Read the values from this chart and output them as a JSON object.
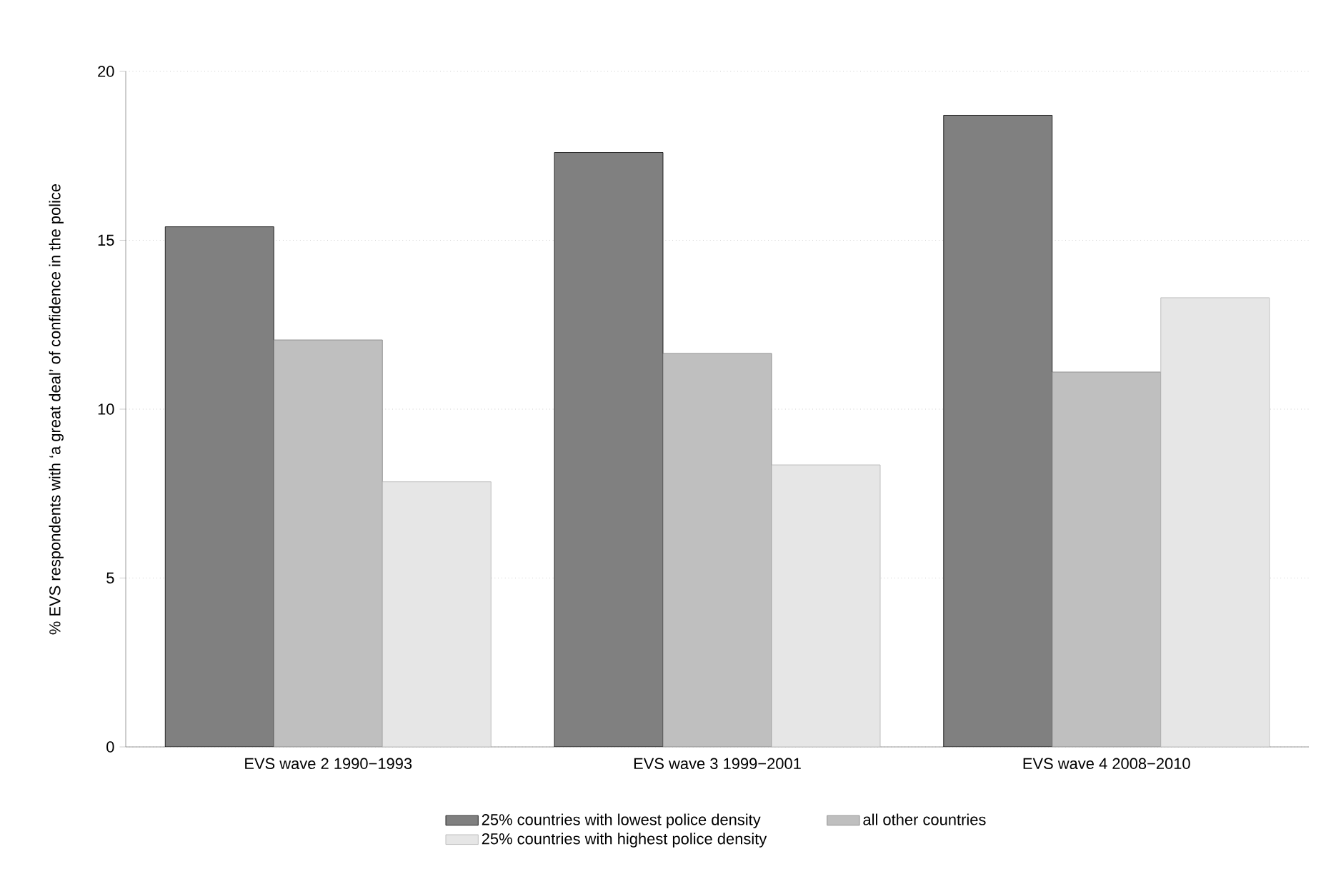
{
  "chart_data": {
    "type": "bar",
    "ylabel": "% EVS respondents with ‘a great deal’ of confidence in the police",
    "categories": [
      "EVS wave 2 1990−1993",
      "EVS wave 3 1999−2001",
      "EVS wave 4 2008−2010"
    ],
    "series": [
      {
        "name": "25% countries with lowest police density",
        "color": "#808080",
        "values": [
          15.4,
          17.6,
          18.7
        ]
      },
      {
        "name": "all other countries",
        "color": "#bfbfbf",
        "values": [
          12.05,
          11.65,
          11.1
        ]
      },
      {
        "name": "25% countries with highest police density",
        "color": "#e6e6e6",
        "values": [
          7.85,
          8.35,
          13.3
        ]
      }
    ],
    "ylim": [
      0,
      20
    ],
    "yticks": [
      0,
      5,
      10,
      15,
      20
    ],
    "grid": "y",
    "legend": "bottom"
  }
}
